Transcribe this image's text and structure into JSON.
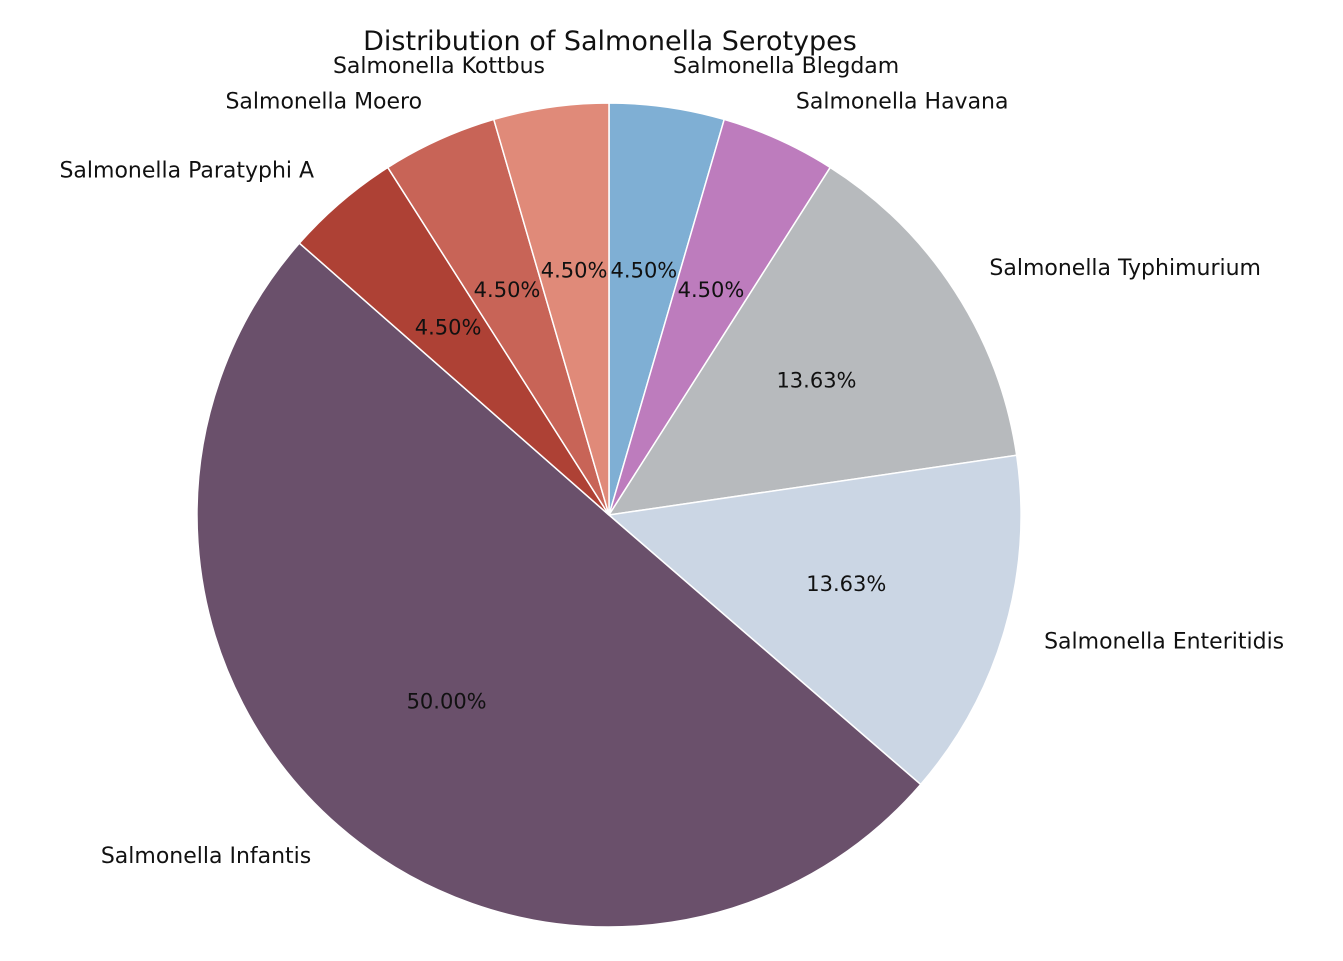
{
  "chart_data": {
    "type": "pie",
    "title": "Distribution of Salmonella Serotypes",
    "start_angle_deg": 90,
    "direction": "clockwise",
    "legend": "none",
    "slices": [
      {
        "label": "Salmonella Blegdam",
        "value": 4.5,
        "pct_label": "4.50%",
        "color": "#7fafd4"
      },
      {
        "label": "Salmonella Havana",
        "value": 4.5,
        "pct_label": "4.50%",
        "color": "#bd7cbd"
      },
      {
        "label": "Salmonella Typhimurium",
        "value": 13.63,
        "pct_label": "13.63%",
        "color": "#b7babd"
      },
      {
        "label": "Salmonella Enteritidis",
        "value": 13.63,
        "pct_label": "13.63%",
        "color": "#cbd6e4"
      },
      {
        "label": "Salmonella Infantis",
        "value": 50.0,
        "pct_label": "50.00%",
        "color": "#6a506b"
      },
      {
        "label": "Salmonella Paratyphi A",
        "value": 4.5,
        "pct_label": "4.50%",
        "color": "#ae4135"
      },
      {
        "label": "Salmonella Moero",
        "value": 4.5,
        "pct_label": "4.50%",
        "color": "#c86457"
      },
      {
        "label": "Salmonella Kottbus",
        "value": 4.5,
        "pct_label": "4.50%",
        "color": "#e08a79"
      }
    ]
  }
}
